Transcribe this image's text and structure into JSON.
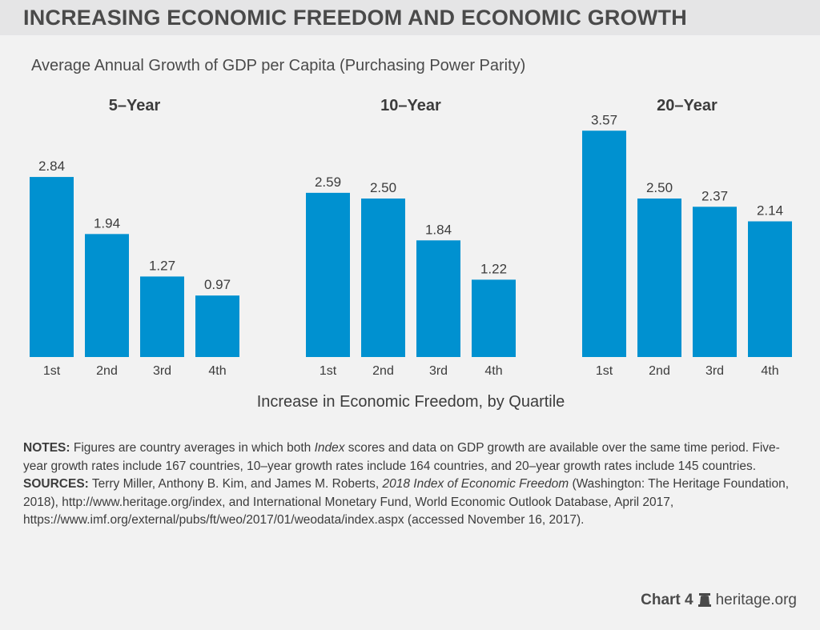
{
  "title": "INCREASING ECONOMIC FREEDOM AND ECONOMIC GROWTH",
  "subtitle": "Average Annual Growth of GDP per Capita (Purchasing Power Parity)",
  "chart_data": {
    "type": "bar",
    "xlabel": "Increase in Economic Freedom, by Quartile",
    "ylabel": "",
    "ylim": [
      0,
      3.6
    ],
    "grid": false,
    "bar_color": "#0091d0",
    "categories": [
      "1st",
      "2nd",
      "3rd",
      "4th"
    ],
    "panels": [
      {
        "title": "5–Year",
        "values": [
          2.84,
          1.94,
          1.27,
          0.97
        ],
        "labels": [
          "2.84",
          "1.94",
          "1.27",
          "0.97"
        ]
      },
      {
        "title": "10–Year",
        "values": [
          2.59,
          2.5,
          1.84,
          1.22
        ],
        "labels": [
          "2.59",
          "2.50",
          "1.84",
          "1.22"
        ]
      },
      {
        "title": "20–Year",
        "values": [
          3.57,
          2.5,
          2.37,
          2.14
        ],
        "labels": [
          "3.57",
          "2.50",
          "2.37",
          "2.14"
        ]
      }
    ]
  },
  "notes": {
    "notes_label": "NOTES:",
    "notes_pre": " Figures are country averages in which both ",
    "notes_italic": "Index",
    "notes_post": " scores and data on GDP growth are available over the same time period. Five-year growth rates include 167 countries, 10–year growth rates include 164 countries, and 20–year growth rates include 145 countries.",
    "sources_label": "SOURCES:",
    "sources_pre": " Terry Miller, Anthony B. Kim, and James M. Roberts, ",
    "sources_italic": "2018 Index of Economic Freedom",
    "sources_post": " (Washington: The Heritage Foundation, 2018), http://www.heritage.org/index, and International Monetary Fund, World Economic Outlook Database, April 2017, https://www.imf.org/external/pubs/ft/weo/2017/01/weodata/index.aspx (accessed November 16, 2017)."
  },
  "footer": {
    "chart_label": "Chart 4",
    "logo_icon": "liberty-bell-icon",
    "site": "heritage.org"
  }
}
